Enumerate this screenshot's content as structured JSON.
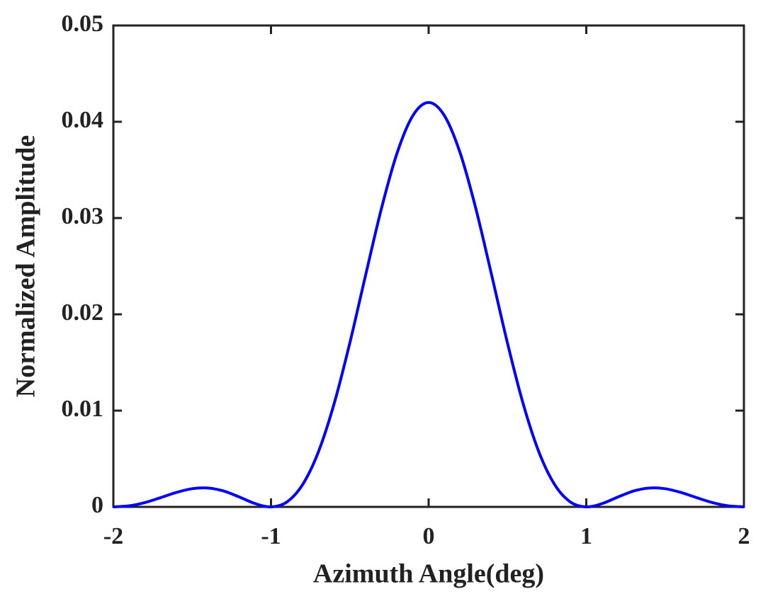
{
  "chart_data": {
    "type": "line",
    "xlabel": "Azimuth Angle(deg)",
    "ylabel": "Normalized Amplitude",
    "x": [
      -2,
      -1.9,
      -1.8,
      -1.7,
      -1.6,
      -1.5,
      -1.4,
      -1.3,
      -1.2,
      -1.1,
      -1,
      -0.9,
      -0.8,
      -0.7,
      -0.6,
      -0.5,
      -0.4,
      -0.3,
      -0.2,
      -0.1,
      0,
      0.1,
      0.2,
      0.3,
      0.4,
      0.5,
      0.6,
      0.7,
      0.8,
      0.9,
      1,
      1.1,
      1.2,
      1.3,
      1.4,
      1.5,
      1.6,
      1.7,
      1.8,
      1.9,
      2
    ],
    "series": [
      {
        "color": "#0000ff",
        "values": [
          0,
          0.00011,
          0.00045,
          0.00096,
          0.0015,
          0.00189,
          0.00196,
          0.00165,
          0.00102,
          0.00034,
          0,
          0.0005,
          0.0023,
          0.00568,
          0.01069,
          0.01702,
          0.02406,
          0.03095,
          0.03676,
          0.04064,
          0.042,
          0.04064,
          0.03676,
          0.03095,
          0.02406,
          0.01702,
          0.01069,
          0.00568,
          0.0023,
          0.0005,
          0,
          0.00034,
          0.00102,
          0.00165,
          0.00196,
          0.00189,
          0.0015,
          0.00096,
          0.00045,
          0.00011,
          0
        ]
      }
    ],
    "xlim": [
      -2,
      2
    ],
    "xticks": [
      -2,
      -1,
      0,
      1,
      2
    ],
    "ylim": [
      0,
      0.05
    ],
    "yticks": [
      0,
      0.01,
      0.02,
      0.03,
      0.04,
      0.05
    ]
  }
}
